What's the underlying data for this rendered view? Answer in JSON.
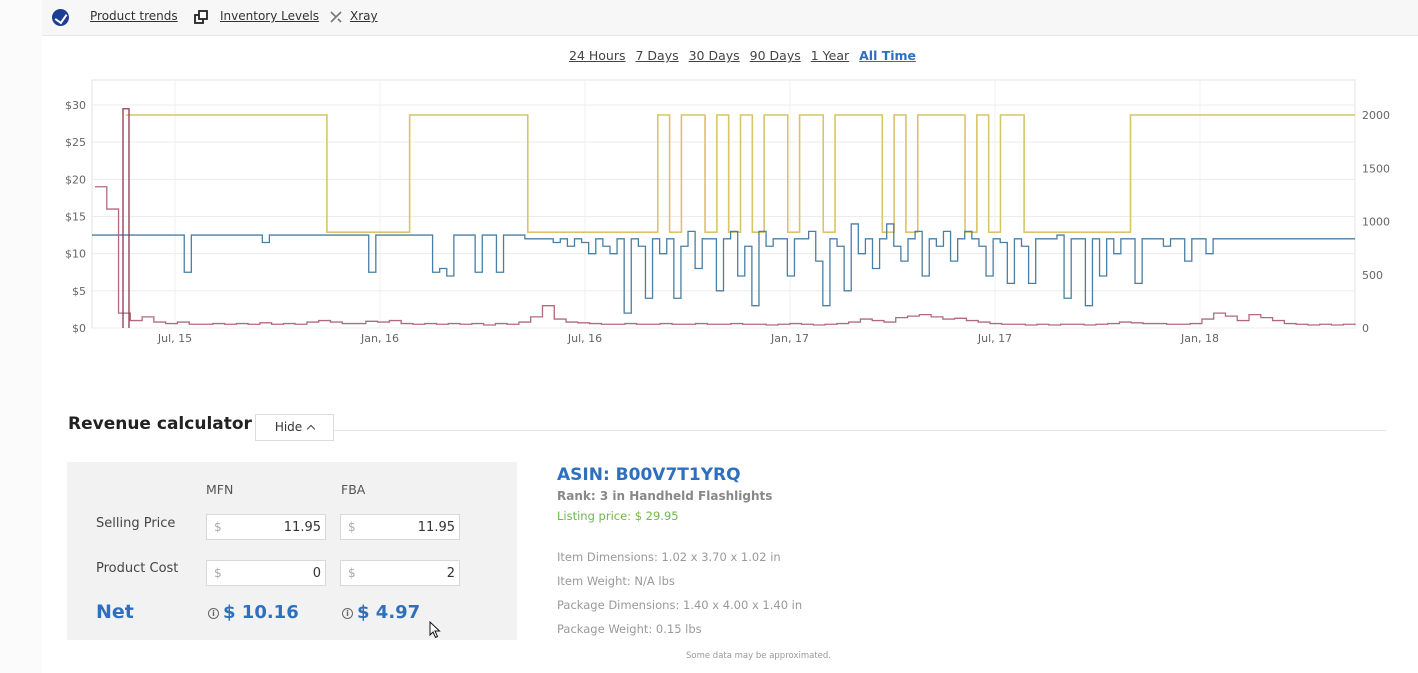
{
  "nav": {
    "links": [
      {
        "label": "Product trends"
      },
      {
        "label": "Inventory Levels"
      },
      {
        "label": "Xray"
      }
    ]
  },
  "time_ranges": {
    "options": [
      "24 Hours",
      "7 Days",
      "30 Days",
      "90 Days",
      "1 Year",
      "All Time"
    ],
    "selected": "All Time"
  },
  "chart_data": {
    "type": "line",
    "x_tick_labels": [
      "Jul, 15",
      "Jan, 16",
      "Jul, 16",
      "Jan, 17",
      "Jul, 17",
      "Jan, 18"
    ],
    "y_left_tick_labels": [
      "$0",
      "$5",
      "$10",
      "$15",
      "$20",
      "$25",
      "$30"
    ],
    "y_left_range": [
      0,
      30
    ],
    "y_right_tick_labels": [
      "0",
      "500",
      "1000",
      "1500",
      "2000"
    ],
    "y_right_range": [
      0,
      2000
    ],
    "grid": true,
    "series": [
      {
        "axis": "right",
        "color": "#d9c46a",
        "values": [
          2000,
          2000,
          2000,
          2000,
          2000,
          2000,
          2000,
          2000,
          2000,
          2000,
          2000,
          2000,
          2000,
          2000,
          2000,
          2000,
          2000,
          900,
          900,
          900,
          900,
          900,
          900,
          900,
          2000,
          2000,
          2000,
          2000,
          2000,
          2000,
          2000,
          2000,
          2000,
          2000,
          900,
          900,
          900,
          900,
          900,
          900,
          900,
          900,
          900,
          900,
          900,
          2000,
          900,
          2000,
          2000,
          900,
          2000,
          900,
          2000,
          900,
          2000,
          2000,
          900,
          2000,
          2000,
          900,
          2000,
          2000,
          2000,
          2000,
          900,
          2000,
          900,
          2000,
          2000,
          2000,
          2000,
          900,
          2000,
          900,
          2000,
          2000,
          900,
          900,
          900,
          900,
          900,
          900,
          900,
          900,
          900,
          2000,
          2000,
          2000,
          2000,
          2000,
          2000,
          2000,
          2000,
          2000,
          2000,
          2000,
          2000,
          2000,
          2000,
          2000,
          2000,
          2000,
          2000,
          2000,
          2000
        ]
      },
      {
        "axis": "left",
        "color": "#4a7fa3",
        "values": [
          12.5,
          12.5,
          12.5,
          12.5,
          12.5,
          12.5,
          12.5,
          12.5,
          12.5,
          12.5,
          12.5,
          12.5,
          12.5,
          7.5,
          12.5,
          12.5,
          12.5,
          12.5,
          12.5,
          12.5,
          12.5,
          12.5,
          12.5,
          12.5,
          11.5,
          12.5,
          12.5,
          12.5,
          12.5,
          12.5,
          12.5,
          12.5,
          12.5,
          12.5,
          12.5,
          12.5,
          12.5,
          12.5,
          12.5,
          7.5,
          12.5,
          12.5,
          12.5,
          12.5,
          12.5,
          12.5,
          12.5,
          12.5,
          7.5,
          8.0,
          7.0,
          12.5,
          12.5,
          12.5,
          7.5,
          12.5,
          12.5,
          7.5,
          12.5,
          12.5,
          12.5,
          12.0,
          12.0,
          12.0,
          12.0,
          11.5,
          12.0,
          11.0,
          12.0,
          11.5,
          10.0,
          12.0,
          11.0,
          10.0,
          12.0,
          2.0,
          12.0,
          11.0,
          4.0,
          12.0,
          10.0,
          12.0,
          4.0,
          11.0,
          13.0,
          8.0,
          12.0,
          12.0,
          5.0,
          12.0,
          13.0,
          7.0,
          11.0,
          3.0,
          13.0,
          11.0,
          12.0,
          12.0,
          7.0,
          12.0,
          12.0,
          13.0,
          9.0,
          3.0,
          12.0,
          11.0,
          5.0,
          14.0,
          10.0,
          12.0,
          8.0,
          12.0,
          14.0,
          11.0,
          9.0,
          12.0,
          13.0,
          7.0,
          12.0,
          11.0,
          13.0,
          9.0,
          12.0,
          13.0,
          12.0,
          11.0,
          7.0,
          12.0,
          11.5,
          6.0,
          12.0,
          11.0,
          6.0,
          12.0,
          12.0,
          12.0,
          12.5,
          4.0,
          12.0,
          12.0,
          3.0,
          12.0,
          7.0,
          12.0,
          10.0,
          12.0,
          12.0,
          6.0,
          12.0,
          12.0,
          12.0,
          11.0,
          12.0,
          12.0,
          9.0,
          12.0,
          12.0,
          10.0,
          12.0,
          12.0,
          12.0,
          12.0,
          12.0,
          12.0,
          12.0,
          12.0,
          12.0,
          12.0,
          12.0,
          12.0,
          12.0,
          12.0,
          12.0,
          12.0,
          12.0,
          12.0,
          12.0,
          12.0,
          12.0
        ]
      },
      {
        "axis": "left",
        "color": "#b06a7e",
        "values": [
          19,
          16,
          2,
          1,
          1.5,
          0.8,
          0.6,
          0.8,
          0.5,
          0.5,
          0.6,
          0.5,
          0.6,
          0.5,
          0.7,
          0.5,
          0.6,
          0.5,
          0.8,
          1.0,
          0.8,
          0.6,
          0.6,
          0.9,
          0.8,
          1.0,
          0.6,
          0.5,
          0.6,
          0.5,
          0.6,
          0.5,
          0.6,
          0.4,
          0.6,
          0.5,
          0.8,
          1.5,
          3.0,
          1.2,
          0.8,
          0.7,
          0.6,
          0.5,
          0.5,
          0.6,
          0.5,
          0.5,
          0.6,
          0.5,
          0.5,
          0.6,
          0.5,
          0.5,
          0.6,
          0.5,
          0.5,
          0.4,
          0.5,
          0.6,
          0.5,
          0.4,
          0.5,
          0.6,
          0.8,
          1.2,
          1.0,
          0.8,
          1.4,
          1.6,
          1.8,
          1.5,
          1.2,
          1.3,
          1.0,
          0.8,
          0.6,
          0.5,
          0.5,
          0.4,
          0.5,
          0.4,
          0.5,
          0.5,
          0.4,
          0.5,
          0.6,
          0.8,
          0.7,
          0.6,
          0.6,
          0.5,
          0.5,
          0.6,
          1.2,
          2.0,
          1.6,
          1.0,
          1.8,
          1.4,
          1.0,
          0.6,
          0.5,
          0.4,
          0.5,
          0.4,
          0.5,
          0.4
        ]
      },
      {
        "axis": "left",
        "color": "#8a3a4a",
        "values": [
          29.5
        ]
      }
    ]
  },
  "revenue_calculator": {
    "title": "Revenue calculator",
    "hide_label": "Hide",
    "columns": [
      "MFN",
      "FBA"
    ],
    "currency_symbol": "$",
    "selling_price_label": "Selling Price",
    "product_cost_label": "Product Cost",
    "net_label": "Net",
    "mfn": {
      "selling_price": "11.95",
      "product_cost": "0",
      "net": "$ 10.16"
    },
    "fba": {
      "selling_price": "11.95",
      "product_cost": "2",
      "net": "$ 4.97"
    }
  },
  "product": {
    "asin": "ASIN: B00V7T1YRQ",
    "rank": "Rank: 3 in Handheld Flashlights",
    "listing_price": "Listing price: $ 29.95",
    "item_dimensions": "Item Dimensions: 1.02 x 3.70 x 1.02 in",
    "item_weight": "Item Weight: N/A lbs",
    "package_dimensions": "Package Dimensions: 1.40 x 4.00 x 1.40 in",
    "package_weight": "Package Weight: 0.15 lbs"
  },
  "footnote": "Some data may be approximated."
}
